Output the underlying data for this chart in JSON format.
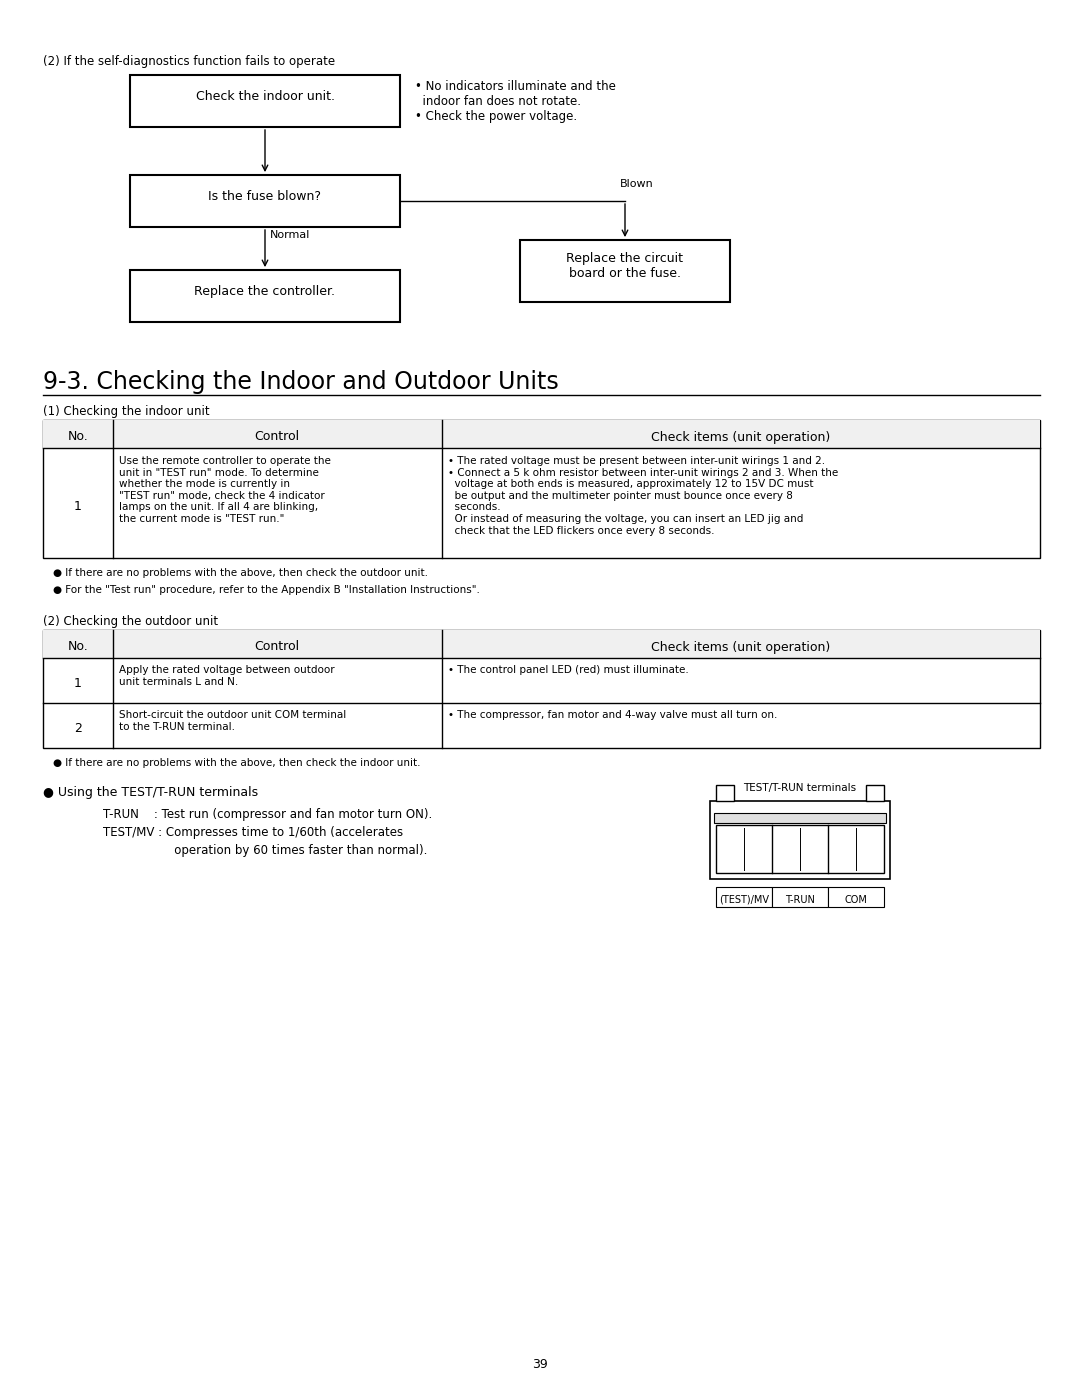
{
  "background_color": "#ffffff",
  "page_number": "39",
  "section_top_label": "(2) If the self-diagnostics function fails to operate",
  "section_heading": "9-3. Checking the Indoor and Outdoor Units",
  "subsection1": "(1) Checking the indoor unit",
  "subsection2": "(2) Checking the outdoor unit",
  "indoor_table_headers": [
    "No.",
    "Control",
    "Check items (unit operation)"
  ],
  "outdoor_table_headers": [
    "No.",
    "Control",
    "Check items (unit operation)"
  ],
  "indoor_notes": [
    "● If there are no problems with the above, then check the outdoor unit.",
    "● For the \"Test run\" procedure, refer to the Appendix B \"Installation Instructions\"."
  ],
  "outdoor_notes": [
    "● If there are no problems with the above, then check the indoor unit."
  ],
  "terminal_bullet": "● Using the TEST/T-RUN terminals",
  "trun_line": "T-RUN    : Test run (compressor and fan motor turn ON).",
  "testmv_line1": "TEST/MV : Compresses time to 1/60th (accelerates",
  "testmv_line2": "                   operation by 60 times faster than normal).",
  "diagram_label": "TEST/T-RUN terminals",
  "terminal_labels": [
    "(TEST)/MV",
    "T-RUN",
    "COM"
  ]
}
